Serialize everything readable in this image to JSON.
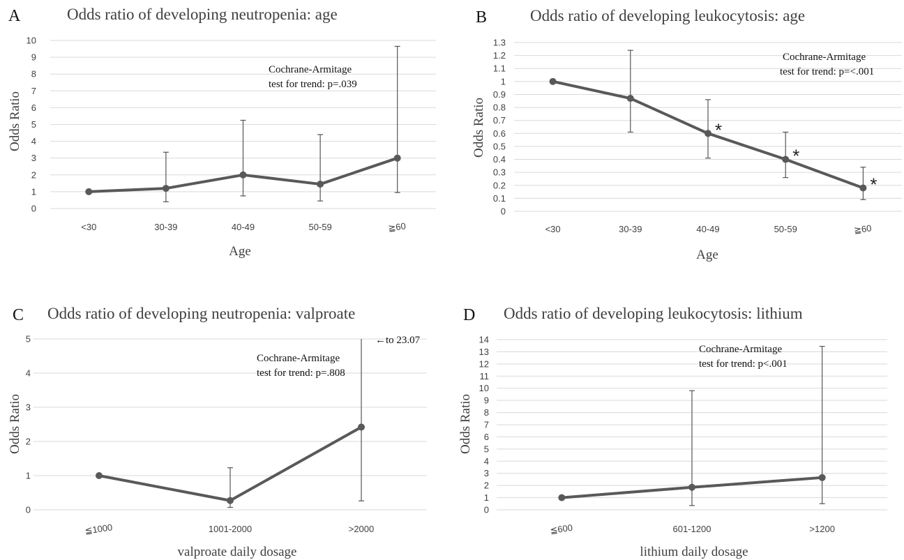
{
  "chart_data": [
    {
      "panel": "A",
      "type": "line",
      "title": "Odds ratio of developing neutropenia: age",
      "xlabel": "Age",
      "ylabel": "Odds Ratio",
      "categories": [
        "<30",
        "30-39",
        "40-49",
        "50-59",
        "≧60"
      ],
      "values": [
        1.0,
        1.2,
        2.0,
        1.45,
        3.0
      ],
      "error_low": [
        1.0,
        0.4,
        0.75,
        0.45,
        0.95
      ],
      "error_high": [
        1.0,
        3.35,
        5.25,
        4.4,
        9.65
      ],
      "ylim": [
        0,
        10
      ],
      "yticks": [
        "0",
        "1",
        "2",
        "3",
        "4",
        "5",
        "6",
        "7",
        "8",
        "9",
        "10"
      ],
      "grid": true,
      "annotation": [
        "Cochrane-Armitage",
        "test for trend: p=.039"
      ]
    },
    {
      "panel": "B",
      "type": "line",
      "title": "Odds ratio of developing leukocytosis: age",
      "xlabel": "Age",
      "ylabel": "Odds Ratio",
      "categories": [
        "<30",
        "30-39",
        "40-49",
        "50-59",
        "≧60"
      ],
      "values": [
        1.0,
        0.87,
        0.6,
        0.4,
        0.18
      ],
      "error_low": [
        1.0,
        0.61,
        0.41,
        0.26,
        0.09
      ],
      "error_high": [
        1.0,
        1.24,
        0.86,
        0.61,
        0.34
      ],
      "significant": [
        false,
        false,
        true,
        true,
        true
      ],
      "significance_mark": "*",
      "ylim": [
        0,
        1.3
      ],
      "yticks": [
        "0",
        "0.1",
        "0.2",
        "0.3",
        "0.4",
        "0.5",
        "0.6",
        "0.7",
        "0.8",
        "0.9",
        "1",
        "1.1",
        "1.2",
        "1.3"
      ],
      "grid": true,
      "annotation": [
        "Cochrane-Armitage",
        "test for trend: p=<.001"
      ]
    },
    {
      "panel": "C",
      "type": "line",
      "title": "Odds ratio of developing neutropenia: valproate",
      "xlabel": "valproate daily dosage",
      "ylabel": "Odds Ratio",
      "categories": [
        "≦1000",
        "1001-2000",
        ">2000"
      ],
      "values": [
        1.0,
        0.27,
        2.42
      ],
      "error_low": [
        1.0,
        0.07,
        0.26
      ],
      "error_high": [
        1.0,
        1.23,
        23.07
      ],
      "ylim": [
        0,
        5
      ],
      "yticks": [
        "0",
        "1",
        "2",
        "3",
        "4",
        "5"
      ],
      "grid": true,
      "truncation_note": "←to 23.07",
      "annotation": [
        "Cochrane-Armitage",
        "test for trend: p=.808"
      ]
    },
    {
      "panel": "D",
      "type": "line",
      "title": "Odds ratio of developing leukocytosis: lithium",
      "xlabel": "lithium daily dosage",
      "ylabel": "Odds Ratio",
      "categories": [
        "≦600",
        "601-1200",
        ">1200"
      ],
      "values": [
        1.0,
        1.85,
        2.65
      ],
      "error_low": [
        1.0,
        0.35,
        0.5
      ],
      "error_high": [
        1.0,
        9.8,
        13.45
      ],
      "ylim": [
        0,
        14
      ],
      "yticks": [
        "0",
        "1",
        "2",
        "3",
        "4",
        "5",
        "6",
        "7",
        "8",
        "9",
        "10",
        "11",
        "12",
        "13",
        "14"
      ],
      "grid": true,
      "annotation": [
        "Cochrane-Armitage",
        "test for trend: p<.001"
      ]
    }
  ],
  "series_color": "#595959",
  "grid_color": "#d9d9d9"
}
